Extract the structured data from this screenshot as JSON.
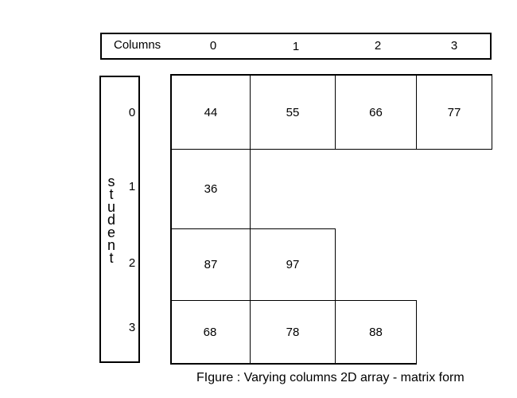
{
  "columns_header": {
    "title": "Columns",
    "indices": [
      "0",
      "1",
      "2",
      "3"
    ]
  },
  "rows_header": {
    "label": "student",
    "indices": [
      "0",
      "1",
      "2",
      "3"
    ]
  },
  "matrix": {
    "rows": [
      [
        "44",
        "55",
        "66",
        "77"
      ],
      [
        "36"
      ],
      [
        "87",
        "97"
      ],
      [
        "68",
        "78",
        "88"
      ]
    ]
  },
  "caption": "FIgure : Varying columns 2D array - matrix form"
}
